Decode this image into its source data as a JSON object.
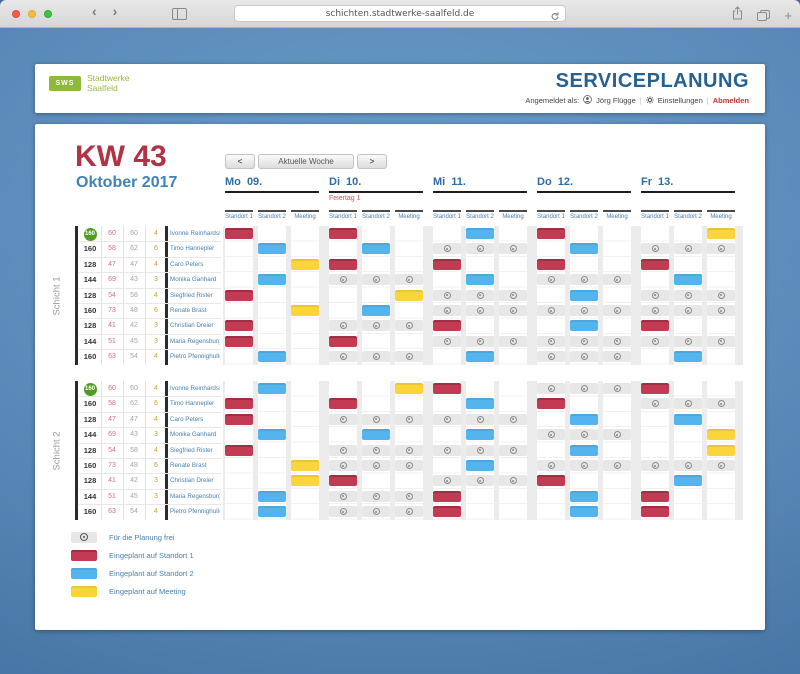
{
  "browser": {
    "url": "schichten.stadtwerke-saalfeld.de"
  },
  "header": {
    "logo_text": "SWS",
    "brand_line1": "Stadtwerke",
    "brand_line2": "Saalfeld",
    "app_title": "SERVICEPLANUNG",
    "logged_in_label": "Angemeldet als:",
    "user_name": "Jörg Flügge",
    "settings_label": "Einstellungen",
    "logout_label": "Abmelden"
  },
  "planner": {
    "week_label": "KW 43",
    "month_label": "Oktober 2017",
    "nav": {
      "prev": "<",
      "current": "Aktuelle Woche",
      "next": ">"
    }
  },
  "days": [
    {
      "label": "Mo 09.",
      "note": ""
    },
    {
      "label": "Di 10.",
      "note": "Feiertag 1"
    },
    {
      "label": "Mi 11.",
      "note": ""
    },
    {
      "label": "Do 12.",
      "note": ""
    },
    {
      "label": "Fr 13.",
      "note": ""
    }
  ],
  "locations": [
    "Standort 1",
    "Standort 2",
    "Meeting"
  ],
  "employees": [
    {
      "stats": [
        "160",
        "60",
        "60",
        "4"
      ],
      "badge": true,
      "name": "Ivonne Reinhardsberg"
    },
    {
      "stats": [
        "160",
        "58",
        "62",
        "6"
      ],
      "badge": false,
      "name": "Timo Hannepler"
    },
    {
      "stats": [
        "128",
        "47",
        "47",
        "4"
      ],
      "badge": false,
      "name": "Caro Peters"
    },
    {
      "stats": [
        "144",
        "69",
        "43",
        "3"
      ],
      "badge": false,
      "name": "Monika Ganhard"
    },
    {
      "stats": [
        "128",
        "54",
        "58",
        "4"
      ],
      "badge": false,
      "name": "Siegfried Rister"
    },
    {
      "stats": [
        "160",
        "73",
        "48",
        "6"
      ],
      "badge": false,
      "name": "Renate Brast"
    },
    {
      "stats": [
        "128",
        "41",
        "42",
        "3"
      ],
      "badge": false,
      "name": "Christian Dreier"
    },
    {
      "stats": [
        "144",
        "51",
        "45",
        "3"
      ],
      "badge": false,
      "name": "Maria Regensburger"
    },
    {
      "stats": [
        "160",
        "63",
        "54",
        "4"
      ],
      "badge": false,
      "name": "Pietro Pfennighuller"
    }
  ],
  "shifts": [
    {
      "label": "Schicht 1",
      "assignments": [
        [
          "s1",
          "s1",
          "s2",
          "s1",
          "m"
        ],
        [
          "s2",
          "s2",
          "free",
          "s2",
          "free"
        ],
        [
          "m",
          "s1",
          "s1",
          "s1",
          "s1"
        ],
        [
          "s2",
          "free",
          "s2",
          "free",
          "s2"
        ],
        [
          "s1",
          "m",
          "free",
          "s2",
          "free"
        ],
        [
          "m",
          "s2",
          "free",
          "free",
          "free"
        ],
        [
          "s1",
          "free",
          "s1",
          "s2",
          "s1"
        ],
        [
          "s1",
          "s1",
          "free",
          "free",
          "free"
        ],
        [
          "s2",
          "free",
          "s2",
          "free",
          "s2"
        ]
      ]
    },
    {
      "label": "Schicht 2",
      "assignments": [
        [
          "s2",
          "m",
          "s1",
          "free",
          "s1"
        ],
        [
          "s1",
          "s1",
          "s2",
          "s1",
          "free"
        ],
        [
          "s1",
          "free",
          "free",
          "s2",
          "s2"
        ],
        [
          "s2",
          "s2",
          "s2",
          "free",
          "m"
        ],
        [
          "s1",
          "free",
          "free",
          "s2",
          "m"
        ],
        [
          "m",
          "free",
          "s2",
          "free",
          "free"
        ],
        [
          "m",
          "s1",
          "free",
          "s1",
          "s2"
        ],
        [
          "s2",
          "free",
          "s1",
          "s2",
          "s1"
        ],
        [
          "s2",
          "free",
          "s1",
          "s2",
          "s1"
        ]
      ]
    }
  ],
  "legend": [
    {
      "type": "free",
      "label": "Für die Planung frei"
    },
    {
      "type": "s1",
      "label": "Eingeplant auf Standort 1"
    },
    {
      "type": "s2",
      "label": "Eingeplant auf Standort 2"
    },
    {
      "type": "m",
      "label": "Eingeplant auf Meeting"
    }
  ],
  "colors": {
    "standort1": "#c23b53",
    "standort2": "#54b4ed",
    "meeting": "#fcd53a",
    "accent_blue": "#2e6da4",
    "brand_green": "#8fb83e",
    "logout_red": "#c0392b"
  }
}
